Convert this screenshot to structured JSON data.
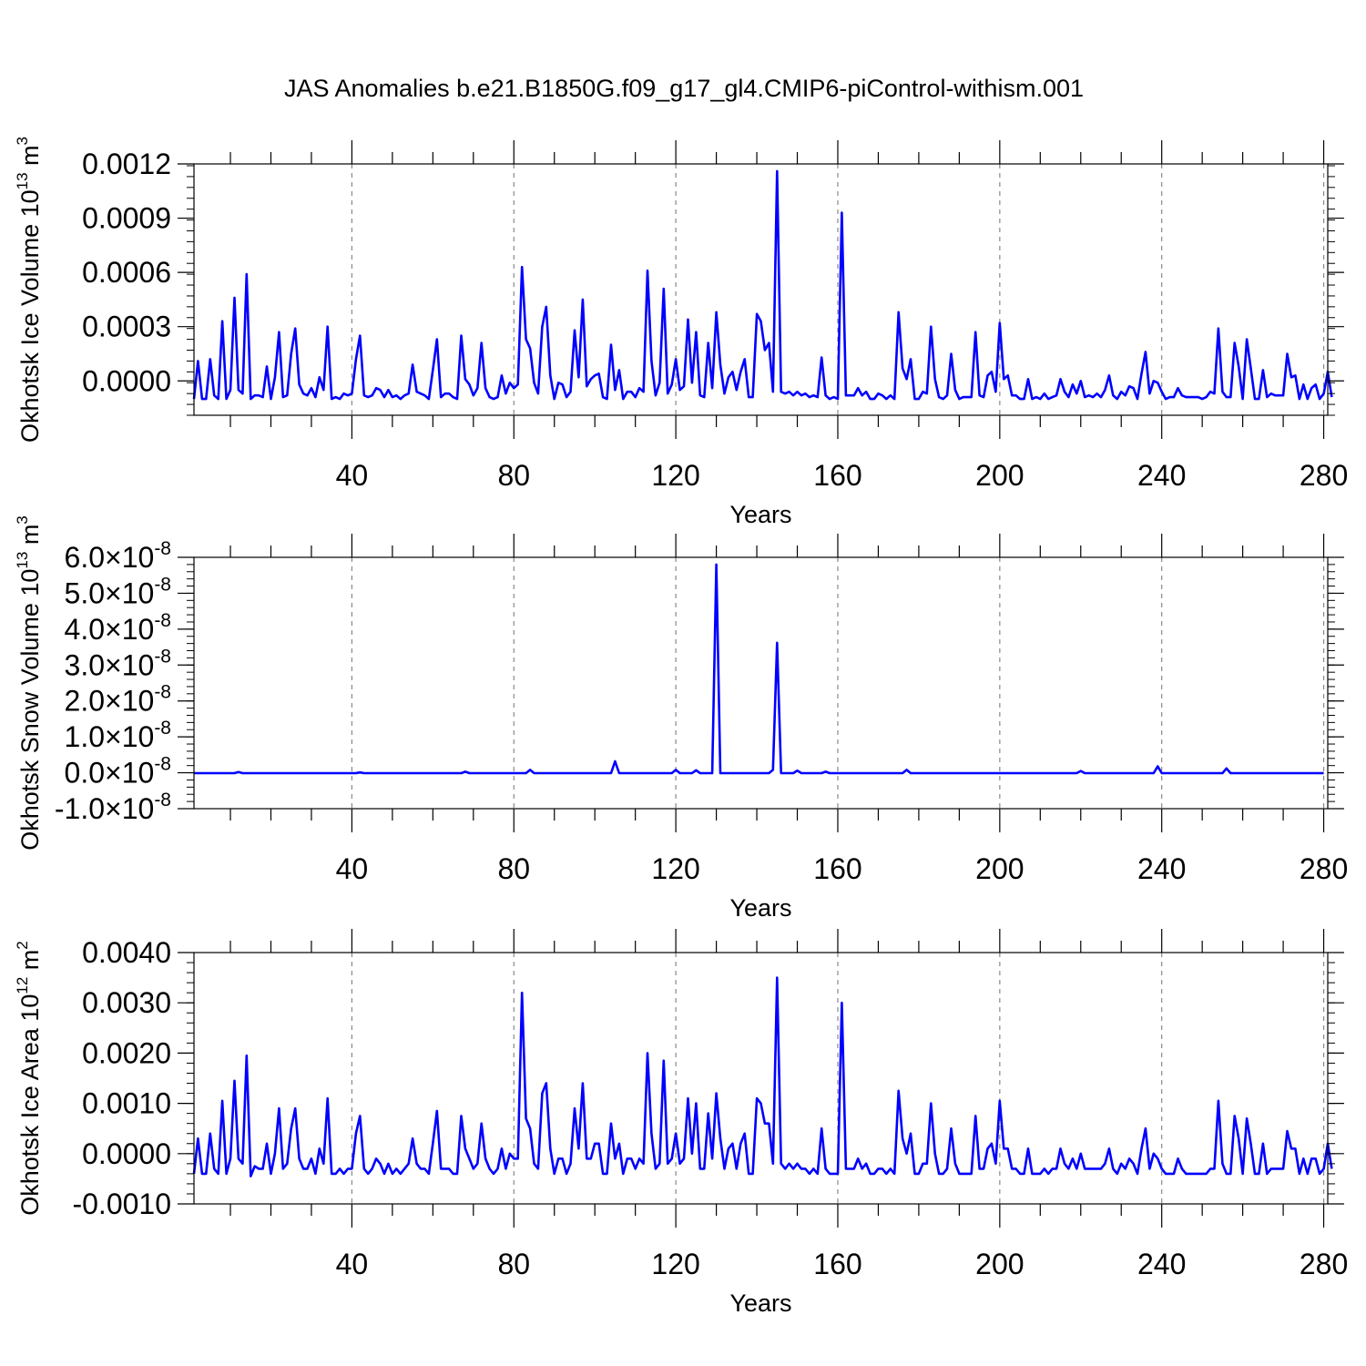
{
  "figure": {
    "title": "JAS Anomalies b.e21.B1850G.f09_g17_gl4.CMIP6-piControl-withism.001",
    "line_color": "#0000ff"
  },
  "chart_data": [
    {
      "type": "line",
      "ylabel": {
        "text": "Okhotsk Ice Volume 10",
        "exp": "13",
        "unit": " m",
        "unit_exp": "3"
      },
      "xlabel": "Years",
      "xlim": [
        1,
        281
      ],
      "ylim": [
        -0.00019,
        0.0012
      ],
      "grid": "vertical-dashed",
      "xticks": [
        40,
        80,
        120,
        160,
        200,
        240,
        280
      ],
      "xtick_labels": [
        "40",
        "80",
        "120",
        "160",
        "200",
        "240",
        "280"
      ],
      "yticks": [
        0,
        0.0003,
        0.0006,
        0.0009,
        0.0012
      ],
      "ytick_labels": [
        "0.0000",
        "0.0003",
        "0.0006",
        "0.0009",
        "0.0012"
      ],
      "series": [
        {
          "values": [
            -0.0001,
            0.00011,
            -0.0001,
            -0.0001,
            0.00012,
            -8e-05,
            -0.0001,
            0.00033,
            -0.0001,
            -5e-05,
            0.00046,
            -5e-05,
            -7e-05,
            0.00059,
            -0.0001,
            -8e-05,
            -8e-05,
            -9e-05,
            8e-05,
            -0.0001,
            2e-05,
            0.00027,
            -9e-05,
            -8e-05,
            0.00015,
            0.00029,
            -2e-05,
            -7e-05,
            -8e-05,
            -4e-05,
            -9e-05,
            2e-05,
            -5e-05,
            0.0003,
            -0.0001,
            -9e-05,
            -0.0001,
            -7e-05,
            -8e-05,
            -7e-05,
            0.00012,
            0.00025,
            -8e-05,
            -9e-05,
            -8e-05,
            -4e-05,
            -5e-05,
            -9e-05,
            -5e-05,
            -9e-05,
            -8e-05,
            -0.0001,
            -8e-05,
            -7e-05,
            9e-05,
            -6e-05,
            -7e-05,
            -8e-05,
            -0.0001,
            6e-05,
            0.00023,
            -9e-05,
            -7e-05,
            -7e-05,
            -9e-05,
            -0.0001,
            0.00025,
            1e-05,
            -2e-05,
            -8e-05,
            -4e-05,
            0.00021,
            -4e-05,
            -9e-05,
            -0.0001,
            -9e-05,
            3e-05,
            -7e-05,
            -1e-05,
            -4e-05,
            -2e-05,
            0.00063,
            0.00023,
            0.00018,
            -1e-05,
            -7e-05,
            0.0003,
            0.00041,
            3e-05,
            -0.0001,
            -1e-05,
            -2e-05,
            -9e-05,
            -6e-05,
            0.00028,
            2e-05,
            0.00045,
            -3e-05,
            1e-05,
            3e-05,
            4e-05,
            -9e-05,
            -0.0001,
            0.0002,
            -5e-05,
            6e-05,
            -0.0001,
            -6e-05,
            -6e-05,
            -9e-05,
            -4e-05,
            -6e-05,
            0.00061,
            0.00011,
            -8e-05,
            -1e-05,
            0.00051,
            -7e-05,
            -2e-05,
            0.00012,
            -5e-05,
            -3e-05,
            0.00034,
            -1e-05,
            0.00027,
            -8e-05,
            -9e-05,
            0.00021,
            -4e-05,
            0.00038,
            9e-05,
            -7e-05,
            2e-05,
            5e-05,
            -5e-05,
            5e-05,
            0.00012,
            -9e-05,
            -9e-05,
            0.00037,
            0.00033,
            0.00017,
            0.00021,
            -6e-05,
            0.00116,
            -6e-05,
            -7e-05,
            -6e-05,
            -8e-05,
            -6e-05,
            -8e-05,
            -7e-05,
            -9e-05,
            -8e-05,
            -9e-05,
            0.00013,
            -8e-05,
            -0.0001,
            -9e-05,
            -0.0001,
            0.00093,
            -8e-05,
            -8e-05,
            -8e-05,
            -4e-05,
            -8e-05,
            -6e-05,
            -0.0001,
            -0.0001,
            -7e-05,
            -8e-05,
            -0.0001,
            -8e-05,
            -0.0001,
            0.00038,
            7e-05,
            1e-05,
            0.00012,
            -0.0001,
            -0.0001,
            -6e-05,
            -7e-05,
            0.0003,
            1e-05,
            -9e-05,
            -0.0001,
            -8e-05,
            0.00015,
            -5e-05,
            -0.0001,
            -9e-05,
            -9e-05,
            -9e-05,
            0.00027,
            -8e-05,
            -9e-05,
            3e-05,
            5e-05,
            -6e-05,
            0.00032,
            1e-05,
            3e-05,
            -8e-05,
            -8e-05,
            -0.0001,
            -0.0001,
            1e-05,
            -0.0001,
            -9e-05,
            -0.0001,
            -7e-05,
            -0.0001,
            -9e-05,
            -8e-05,
            1e-05,
            -6e-05,
            -9e-05,
            -2e-05,
            -7e-05,
            0,
            -9e-05,
            -8e-05,
            -9e-05,
            -7e-05,
            -9e-05,
            -5e-05,
            3e-05,
            -8e-05,
            -0.0001,
            -6e-05,
            -8e-05,
            -3e-05,
            -4e-05,
            -0.0001,
            4e-05,
            0.00016,
            -7e-05,
            0,
            -1e-05,
            -6e-05,
            -0.0001,
            -9e-05,
            -9e-05,
            -4e-05,
            -8e-05,
            -9e-05,
            -9e-05,
            -9e-05,
            -9e-05,
            -0.0001,
            -9e-05,
            -6e-05,
            -7e-05,
            0.00029,
            -6e-05,
            -9e-05,
            -9e-05,
            0.00021,
            8e-05,
            -0.0001,
            0.00023,
            7e-05,
            -0.0001,
            -0.0001,
            6e-05,
            -9e-05,
            -7e-05,
            -8e-05,
            -8e-05,
            -8e-05,
            0.00015,
            2e-05,
            3e-05,
            -0.0001,
            -2e-05,
            -0.0001,
            -4e-05,
            -2e-05,
            -0.0001,
            -7e-05,
            5e-05,
            -9e-05
          ]
        }
      ]
    },
    {
      "type": "line",
      "ylabel": {
        "text": "Okhotsk Snow Volume 10",
        "exp": "13",
        "unit": " m",
        "unit_exp": "3"
      },
      "xlabel": "Years",
      "xlim": [
        1,
        281
      ],
      "ylim": [
        -1e-08,
        6e-08
      ],
      "grid": "vertical-dashed",
      "xticks": [
        40,
        80,
        120,
        160,
        200,
        240,
        280
      ],
      "xtick_labels": [
        "40",
        "80",
        "120",
        "160",
        "200",
        "240",
        "280"
      ],
      "yticks": [
        -1e-08,
        0,
        1e-08,
        2e-08,
        3e-08,
        4e-08,
        5e-08,
        6e-08
      ],
      "ytick_labels": [
        {
          "m": "-1.0",
          "e": "-8"
        },
        {
          "m": "0.0",
          "e": "-8"
        },
        {
          "m": "1.0",
          "e": "-8"
        },
        {
          "m": "2.0",
          "e": "-8"
        },
        {
          "m": "3.0",
          "e": "-8"
        },
        {
          "m": "4.0",
          "e": "-8"
        },
        {
          "m": "5.0",
          "e": "-8"
        },
        {
          "m": "6.0",
          "e": "-8"
        }
      ],
      "tick_times": "×10",
      "baseline": -1e-10,
      "spikes": [
        {
          "x": 12,
          "y": 2e-10
        },
        {
          "x": 42,
          "y": 1e-10
        },
        {
          "x": 68,
          "y": 3e-10
        },
        {
          "x": 84,
          "y": 8e-10
        },
        {
          "x": 105,
          "y": 3.2e-09
        },
        {
          "x": 120,
          "y": 8e-10
        },
        {
          "x": 125,
          "y": 7e-10
        },
        {
          "x": 130,
          "y": 5.8e-08
        },
        {
          "x": 144,
          "y": 8e-10
        },
        {
          "x": 145,
          "y": 3.62e-08
        },
        {
          "x": 150,
          "y": 6e-10
        },
        {
          "x": 157,
          "y": 3e-10
        },
        {
          "x": 177,
          "y": 8e-10
        },
        {
          "x": 220,
          "y": 5e-10
        },
        {
          "x": 239,
          "y": 1.8e-09
        },
        {
          "x": 256,
          "y": 1.2e-09
        }
      ]
    },
    {
      "type": "line",
      "ylabel": {
        "text": "Okhotsk Ice Area 10",
        "exp": "12",
        "unit": " m",
        "unit_exp": "2"
      },
      "xlabel": "Years",
      "xlim": [
        1,
        281
      ],
      "ylim": [
        -0.001,
        0.004
      ],
      "grid": "vertical-dashed",
      "xticks": [
        40,
        80,
        120,
        160,
        200,
        240,
        280
      ],
      "xtick_labels": [
        "40",
        "80",
        "120",
        "160",
        "200",
        "240",
        "280"
      ],
      "yticks": [
        -0.001,
        0,
        0.001,
        0.002,
        0.003,
        0.004
      ],
      "ytick_labels": [
        "-0.0010",
        "0.0000",
        "0.0010",
        "0.0020",
        "0.0030",
        "0.0040"
      ],
      "series": [
        {
          "values": [
            -0.0004,
            0.0003,
            -0.0004,
            -0.0004,
            0.0004,
            -0.0003,
            -0.0004,
            0.00105,
            -0.0004,
            -0.0001,
            0.00145,
            -0.0001,
            -0.0002,
            0.00195,
            -0.00045,
            -0.00025,
            -0.0003,
            -0.0003,
            0.0002,
            -0.0004,
            0,
            0.0009,
            -0.0003,
            -0.0002,
            0.0005,
            0.0009,
            -0.0001,
            -0.0003,
            -0.0003,
            -0.0001,
            -0.0004,
            0.0001,
            -0.0002,
            0.0011,
            -0.0004,
            -0.0004,
            -0.0003,
            -0.0004,
            -0.0003,
            -0.0003,
            0.0004,
            0.00075,
            -0.0003,
            -0.0004,
            -0.0003,
            -0.0001,
            -0.0002,
            -0.0004,
            -0.0002,
            -0.0004,
            -0.0003,
            -0.0004,
            -0.0003,
            -0.0002,
            0.0003,
            -0.0002,
            -0.0003,
            -0.0003,
            -0.0004,
            0.0002,
            0.00085,
            -0.0003,
            -0.0003,
            -0.0003,
            -0.0004,
            -0.0004,
            0.00075,
            0.0001,
            -0.0001,
            -0.0003,
            -0.0002,
            0.0006,
            -0.0001,
            -0.0003,
            -0.0004,
            -0.0003,
            0.0001,
            -0.0003,
            0,
            -0.0001,
            -0.0001,
            0.0032,
            0.0007,
            0.0005,
            -0.0002,
            -0.0003,
            0.0012,
            0.0014,
            0.0001,
            -0.0004,
            -0.0001,
            -0.0001,
            -0.0004,
            -0.0002,
            0.0009,
            0.0001,
            0.0014,
            -0.0001,
            -0.0001,
            0.0002,
            0.0002,
            -0.0004,
            -0.0004,
            0.0006,
            -0.0001,
            0.0002,
            -0.0004,
            -0.0001,
            -0.0001,
            -0.0003,
            -0.0001,
            -0.0002,
            0.002,
            0.0004,
            -0.0003,
            -0.0002,
            0.00185,
            -0.0002,
            -0.0001,
            0.0004,
            -0.0002,
            -0.0001,
            0.0011,
            0,
            0.001,
            -0.0003,
            -0.0003,
            0.0008,
            -0.0001,
            0.0012,
            0.0003,
            -0.0003,
            0.0001,
            0.0002,
            -0.0003,
            0.0002,
            0.0004,
            -0.0004,
            -0.0004,
            0.0011,
            0.001,
            0.0006,
            0.0006,
            -0.0002,
            0.0035,
            -0.0002,
            -0.0003,
            -0.0002,
            -0.0003,
            -0.0002,
            -0.0003,
            -0.0003,
            -0.0004,
            -0.0003,
            -0.0004,
            0.0005,
            -0.0003,
            -0.0004,
            -0.0004,
            -0.0004,
            0.003,
            -0.0003,
            -0.0003,
            -0.0003,
            -0.0001,
            -0.0003,
            -0.0002,
            -0.0004,
            -0.0004,
            -0.0003,
            -0.0003,
            -0.0004,
            -0.0003,
            -0.0004,
            0.00125,
            0.0003,
            0,
            0.0004,
            -0.0004,
            -0.0004,
            -0.0002,
            -0.0002,
            0.001,
            0,
            -0.0004,
            -0.0004,
            -0.0003,
            0.0005,
            -0.0002,
            -0.0004,
            -0.0004,
            -0.0004,
            -0.0004,
            0.00075,
            -0.0003,
            -0.0003,
            0.0001,
            0.0002,
            -0.0002,
            0.00105,
            0.0001,
            0.0001,
            -0.0003,
            -0.0003,
            -0.0004,
            -0.0004,
            0.0001,
            -0.0004,
            -0.0004,
            -0.0004,
            -0.0003,
            -0.0004,
            -0.0003,
            -0.0003,
            0.0001,
            -0.0002,
            -0.0003,
            -0.0001,
            -0.0003,
            0,
            -0.0003,
            -0.0003,
            -0.0003,
            -0.0003,
            -0.0003,
            -0.0002,
            0.0001,
            -0.0003,
            -0.0004,
            -0.0002,
            -0.0003,
            -0.0001,
            -0.0002,
            -0.0004,
            0.0001,
            0.0005,
            -0.0003,
            0,
            -0.0001,
            -0.0003,
            -0.0004,
            -0.0004,
            -0.0004,
            -0.0001,
            -0.0003,
            -0.0004,
            -0.0004,
            -0.0004,
            -0.0004,
            -0.0004,
            -0.0004,
            -0.0003,
            -0.0003,
            0.00105,
            -0.0002,
            -0.0004,
            -0.0004,
            0.00075,
            0.0003,
            -0.0004,
            0.0007,
            0.0002,
            -0.0004,
            -0.0004,
            0.0002,
            -0.0004,
            -0.0003,
            -0.0003,
            -0.0003,
            -0.0003,
            0.00045,
            0.0001,
            0.0001,
            -0.0004,
            -0.0001,
            -0.0004,
            -0.0001,
            -0.0001,
            -0.0004,
            -0.0003,
            0.0002,
            -0.0003
          ]
        }
      ]
    }
  ]
}
